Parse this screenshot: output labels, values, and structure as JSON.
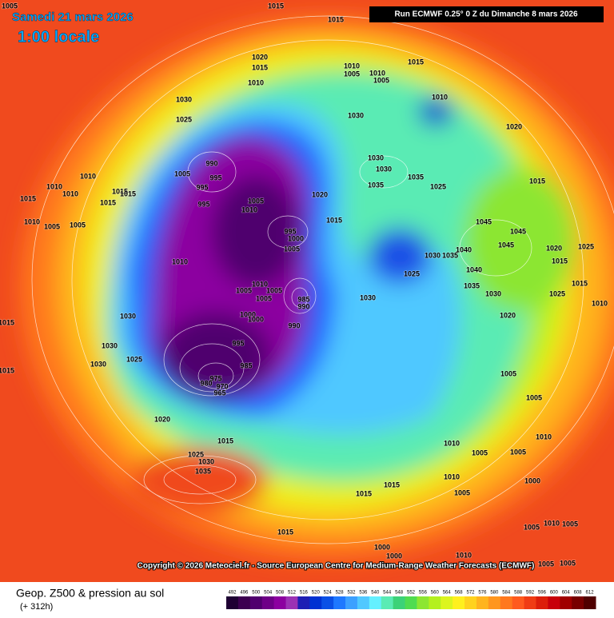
{
  "header": {
    "date": "Samedi 21 mars 2026",
    "time": "1:00 locale",
    "run": "Run ECMWF 0.25° 0 Z du Dimanche 8 mars 2026"
  },
  "copyright": "Copyright © 2026 Meteociel.fr - Source European Centre for Medium-Range Weather Forecasts (ECMWF)",
  "legend": {
    "title": "Geop. Z500 & pression au sol",
    "subtitle": "(+ 312h)",
    "scale": [
      {
        "value": 492,
        "color": "#1e0033"
      },
      {
        "value": 496,
        "color": "#3c0050"
      },
      {
        "value": 500,
        "color": "#50006e"
      },
      {
        "value": 504,
        "color": "#6e0087"
      },
      {
        "value": 508,
        "color": "#8c00a0"
      },
      {
        "value": 512,
        "color": "#9b32b4"
      },
      {
        "value": 516,
        "color": "#1e1eb4"
      },
      {
        "value": 520,
        "color": "#0032d2"
      },
      {
        "value": 524,
        "color": "#0a50e6"
      },
      {
        "value": 528,
        "color": "#1e78ff"
      },
      {
        "value": 532,
        "color": "#3ca0ff"
      },
      {
        "value": 536,
        "color": "#50c8ff"
      },
      {
        "value": 540,
        "color": "#64f0ff"
      },
      {
        "value": 544,
        "color": "#5aebb4"
      },
      {
        "value": 548,
        "color": "#3cd278"
      },
      {
        "value": 552,
        "color": "#50dc50"
      },
      {
        "value": 556,
        "color": "#8ce632"
      },
      {
        "value": 560,
        "color": "#b4f01e"
      },
      {
        "value": 564,
        "color": "#dcf51e"
      },
      {
        "value": 568,
        "color": "#fff01e"
      },
      {
        "value": 572,
        "color": "#ffd21e"
      },
      {
        "value": 576,
        "color": "#ffb41e"
      },
      {
        "value": 580,
        "color": "#ff961e"
      },
      {
        "value": 584,
        "color": "#ff781e"
      },
      {
        "value": 588,
        "color": "#ff5a1e"
      },
      {
        "value": 592,
        "color": "#f03c14"
      },
      {
        "value": 596,
        "color": "#dc1e0a"
      },
      {
        "value": 600,
        "color": "#c8000a"
      },
      {
        "value": 604,
        "color": "#a00000"
      },
      {
        "value": 608,
        "color": "#780000"
      },
      {
        "value": 612,
        "color": "#500000"
      }
    ]
  },
  "isobar_labels": [
    1005,
    1015,
    1015,
    1020,
    1015,
    1010,
    1010,
    1005,
    1010,
    1005,
    1015,
    1010,
    1030,
    1025,
    1030,
    1030,
    1030,
    1035,
    1035,
    1025,
    1020,
    1015,
    990,
    995,
    1005,
    995,
    995,
    1005,
    1010,
    1020,
    1015,
    995,
    1000,
    1005,
    1010,
    1010,
    1010,
    1015,
    1015,
    1015,
    1015,
    1010,
    1005,
    1005,
    1010,
    1010,
    1005,
    1005,
    1005,
    985,
    990,
    1000,
    1000,
    990,
    1030,
    1025,
    1030,
    1035,
    1040,
    1040,
    1035,
    1030,
    1020,
    1005,
    1005,
    1010,
    1045,
    1045,
    1045,
    1020,
    1025,
    1015,
    1015,
    1025,
    1010,
    1030,
    1030,
    1030,
    1025,
    995,
    985,
    975,
    970,
    980,
    965,
    1015,
    1015,
    1020,
    1015,
    1025,
    1030,
    1035,
    1010,
    1005,
    1005,
    1010,
    1005,
    1015,
    1015,
    1015,
    1000,
    1000,
    1010,
    1000,
    1005,
    1010,
    1005,
    1005,
    1005
  ]
}
